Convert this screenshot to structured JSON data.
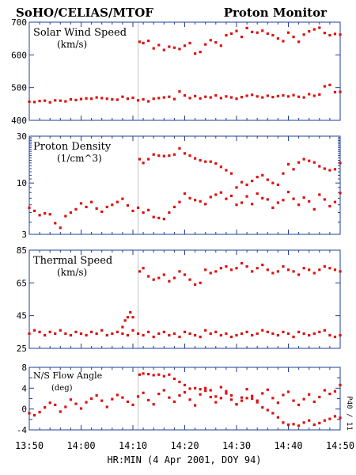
{
  "header": {
    "title_left": "SoHO/CELIAS/MTOF",
    "title_right": "Proton Monitor"
  },
  "side_label": "P40 / 11",
  "colors": {
    "points": "#dd1111",
    "axis": "#1f3f9a",
    "event_line": "#c8c8c8",
    "text": "#000000"
  },
  "chart_data": [
    {
      "type": "scatter",
      "panel_label": "Solar Wind Speed",
      "panel_unit": "(km/s)",
      "yscale": "linear",
      "ylim": [
        400,
        700
      ],
      "y_ticks": [
        400,
        500,
        600,
        700
      ],
      "y_tick_labels": [
        "400",
        "500",
        "600",
        "700"
      ],
      "event_time_min": 21,
      "x": [
        0,
        1,
        2,
        3,
        4,
        5,
        6,
        7,
        8,
        9,
        10,
        11,
        12,
        13,
        14,
        15,
        16,
        17,
        18,
        19,
        20,
        21,
        22,
        23,
        24,
        25,
        26,
        27,
        28,
        29,
        30,
        31,
        32,
        33,
        34,
        35,
        36,
        37,
        38,
        39,
        40,
        41,
        42,
        43,
        44,
        45,
        46,
        47,
        48,
        49,
        50,
        51,
        52,
        53,
        54,
        55,
        56,
        57,
        58,
        59,
        60
      ],
      "y": [
        457,
        456,
        459,
        460,
        455,
        461,
        460,
        458,
        464,
        462,
        465,
        467,
        466,
        470,
        468,
        466,
        464,
        463,
        472,
        466,
        469,
        461,
        464,
        458,
        466,
        468,
        470,
        472,
        465,
        488,
        476,
        468,
        474,
        467,
        472,
        470,
        476,
        468,
        473,
        470,
        466,
        471,
        475,
        478,
        473,
        470,
        475,
        471,
        474,
        476,
        473,
        477,
        472,
        470,
        480,
        475,
        479,
        504,
        508,
        486,
        487
      ]
    },
    {
      "type": "scatter",
      "panel_label": "Proton Density",
      "panel_unit": "(1/cm^3)",
      "yscale": "log",
      "ylim": [
        3,
        30
      ],
      "y_ticks": [
        3,
        10,
        30
      ],
      "y_tick_labels": [
        "3",
        "10",
        "30"
      ],
      "event_time_min": 21,
      "x": [
        0,
        1,
        2,
        3,
        4,
        5,
        6,
        7,
        8,
        9,
        10,
        11,
        12,
        13,
        14,
        15,
        16,
        17,
        18,
        19,
        20,
        21,
        22,
        23,
        24,
        25,
        26,
        27,
        28,
        29,
        30,
        31,
        32,
        33,
        34,
        35,
        36,
        37,
        38,
        39,
        40,
        41,
        42,
        43,
        44,
        45,
        46,
        47,
        48,
        49,
        50,
        51,
        52,
        53,
        54,
        55,
        56,
        57,
        58,
        59,
        60
      ],
      "y": [
        5.6,
        5.2,
        4.7,
        4.9,
        4.8,
        3.9,
        3.5,
        4.6,
        5.0,
        5.4,
        6.2,
        5.7,
        6.4,
        5.5,
        5.1,
        5.7,
        6.0,
        6.4,
        6.9,
        5.9,
        5.2,
        5.6,
        5.0,
        5.3,
        4.5,
        4.4,
        4.3,
        5.0,
        5.7,
        6.4,
        7.8,
        7.0,
        6.7,
        6.5,
        6.1,
        7.2,
        7.6,
        8.0,
        6.9,
        7.4,
        6.0,
        6.3,
        7.3,
        6.1,
        7.8,
        7.0,
        6.8,
        5.6,
        6.3,
        6.7,
        8.1,
        6.9,
        6.0,
        7.1,
        6.5,
        5.4,
        7.6,
        6.8,
        5.8,
        6.4,
        7.9
      ]
    },
    {
      "type": "scatter",
      "panel_label": "Thermal Speed",
      "panel_unit": "(km/s)",
      "yscale": "linear",
      "ylim": [
        25,
        85
      ],
      "y_ticks": [
        25,
        45,
        65,
        85
      ],
      "y_tick_labels": [
        "25",
        "45",
        "65",
        "85"
      ],
      "event_time_min": 21,
      "x": [
        0,
        1,
        2,
        3,
        4,
        5,
        6,
        7,
        8,
        9,
        10,
        11,
        12,
        13,
        14,
        15,
        16,
        17,
        18,
        19,
        20,
        21,
        22,
        23,
        24,
        25,
        26,
        27,
        28,
        29,
        30,
        31,
        32,
        33,
        34,
        35,
        36,
        37,
        38,
        39,
        40,
        41,
        42,
        43,
        44,
        45,
        46,
        47,
        48,
        49,
        50,
        51,
        52,
        53,
        54,
        55,
        56,
        57,
        58,
        59,
        60
      ],
      "y": [
        34,
        36,
        35,
        33,
        35,
        34,
        36,
        34,
        33,
        35,
        34,
        33,
        35,
        34,
        36,
        33,
        34,
        35,
        34,
        33,
        36,
        34,
        33,
        35,
        32,
        34,
        35,
        33,
        34,
        32,
        35,
        34,
        33,
        32,
        36,
        34,
        35,
        33,
        34,
        32,
        33,
        34,
        35,
        33,
        34,
        36,
        35,
        34,
        33,
        35,
        34,
        32,
        35,
        34,
        33,
        34,
        35,
        36,
        33,
        32,
        33
      ]
    },
    {
      "type": "scatter",
      "panel_label": "N/S Flow Angle",
      "panel_unit": "(deg)",
      "yscale": "linear",
      "ylim": [
        -4,
        8
      ],
      "y_ticks": [
        -4,
        0,
        4,
        8
      ],
      "y_tick_labels": [
        "-4",
        "0",
        "4",
        "8"
      ],
      "y_minor_ticks": [
        -2,
        2,
        6
      ],
      "event_time_min": 21,
      "x": [
        0,
        1,
        2,
        3,
        4,
        5,
        6,
        7,
        8,
        9,
        10,
        11,
        12,
        13,
        14,
        15,
        16,
        17,
        18,
        19,
        20,
        21,
        22,
        23,
        24,
        25,
        26,
        27,
        28,
        29,
        30,
        31,
        32,
        33,
        34,
        35,
        36,
        37,
        38,
        39,
        40,
        41,
        42,
        43,
        44,
        45,
        46,
        47,
        48,
        49,
        50,
        51,
        52,
        53,
        54,
        55,
        56,
        57,
        58,
        59,
        60
      ],
      "y": [
        -0.8,
        -1.2,
        -0.6,
        0.3,
        1.2,
        0.8,
        -0.5,
        0.4,
        1.8,
        1.0,
        0.1,
        1.3,
        2.0,
        2.6,
        1.6,
        0.4,
        1.9,
        2.7,
        2.2,
        1.4,
        0.8,
        2.4,
        3.1,
        1.7,
        0.9,
        2.9,
        3.6,
        2.2,
        1.4,
        2.6,
        3.2,
        1.8,
        0.7,
        2.8,
        3.5,
        2.3,
        1.3,
        2.1,
        3.4,
        2.6,
        0.9,
        2.2,
        3.8,
        2.5,
        1.6,
        3.0,
        3.7,
        2.1,
        1.2,
        2.7,
        3.3,
        1.6,
        0.8,
        1.9,
        2.8,
        1.4,
        2.3,
        3.6,
        2.9,
        3.4,
        4.6
      ]
    }
  ],
  "extra_series": {
    "solar_wind_speed_after": {
      "x": [
        21.3,
        22,
        23,
        24,
        25,
        26,
        27,
        28,
        29,
        30,
        31,
        32,
        33,
        34,
        35,
        36,
        37,
        38,
        39,
        40,
        41,
        42,
        43,
        44,
        45,
        46,
        47,
        48,
        49,
        50,
        51,
        52,
        53,
        54,
        55,
        56,
        57,
        58,
        59,
        60
      ],
      "y": [
        640,
        636,
        643,
        620,
        630,
        615,
        625,
        622,
        618,
        628,
        636,
        604,
        609,
        632,
        645,
        638,
        628,
        660,
        665,
        673,
        655,
        682,
        670,
        668,
        674,
        665,
        660,
        650,
        642,
        668,
        655,
        640,
        662,
        672,
        678,
        683,
        667,
        660,
        664,
        662
      ]
    },
    "proton_density_after": {
      "x": [
        21.3,
        22,
        23,
        24,
        25,
        26,
        27,
        28,
        29,
        30,
        31,
        32,
        33,
        34,
        35,
        36,
        37,
        38,
        39,
        40,
        41,
        42,
        43,
        44,
        45,
        46,
        47,
        48,
        49,
        50,
        51,
        52,
        53,
        54,
        55,
        56,
        57,
        58,
        59,
        60
      ],
      "y": [
        17.5,
        16.0,
        17.5,
        19.5,
        19.0,
        18.8,
        19.0,
        19.5,
        22.5,
        20.0,
        19.0,
        17.8,
        17.0,
        16.5,
        16.5,
        15.8,
        14.6,
        13.5,
        12.5,
        9.0,
        10.2,
        9.6,
        10.5,
        11.5,
        12.0,
        10.8,
        10.0,
        9.6,
        12.5,
        15.5,
        13.8,
        16.2,
        17.5,
        16.8,
        16.2,
        14.8,
        14.0,
        13.5,
        13.8,
        16.0
      ]
    },
    "thermal_speed_after": {
      "x": [
        21.3,
        22,
        23,
        24,
        25,
        26,
        27,
        28,
        29,
        30,
        31,
        32,
        33,
        34,
        35,
        36,
        37,
        38,
        39,
        40,
        41,
        42,
        43,
        44,
        45,
        46,
        47,
        48,
        49,
        50,
        51,
        52,
        53,
        54,
        55,
        56,
        57,
        58,
        59,
        60
      ],
      "y": [
        72,
        74,
        69,
        67,
        68,
        70,
        66,
        68,
        72,
        70,
        67,
        64,
        65,
        73,
        71,
        72,
        74,
        75,
        73,
        74,
        77,
        75,
        72,
        74,
        76,
        73,
        71,
        72,
        75,
        73,
        72,
        70,
        74,
        73,
        71,
        73,
        75,
        74,
        73,
        72
      ]
    },
    "ns_flow_angle_after": {
      "x": [
        21.3,
        22,
        23,
        24,
        25,
        26,
        27,
        28,
        29,
        30,
        31,
        32,
        33,
        34,
        35,
        36,
        37,
        38,
        39,
        40,
        41,
        42,
        43,
        44,
        45,
        46,
        47,
        48,
        49,
        50,
        51,
        52,
        53,
        54,
        55,
        56,
        57,
        58,
        59,
        60
      ],
      "y": [
        6.6,
        6.8,
        6.7,
        6.5,
        6.6,
        6.3,
        6.6,
        5.8,
        5.2,
        4.6,
        3.9,
        4.0,
        3.8,
        4.0,
        3.6,
        2.4,
        4.2,
        3.0,
        1.8,
        0.9,
        1.6,
        2.1,
        2.0,
        1.3,
        0.3,
        -0.2,
        -0.8,
        -1.6,
        -2.6,
        -3.0,
        -2.9,
        -3.2,
        -2.6,
        -2.2,
        -3.0,
        -2.7,
        -2.2,
        -1.9,
        -1.4,
        -1.7
      ]
    },
    "thermal_speed_ramp": {
      "x": [
        18,
        18.5,
        19,
        19.5,
        20
      ],
      "y": [
        38,
        42,
        44,
        47,
        44
      ]
    }
  },
  "x_axis": {
    "tick_labels": [
      "13:50",
      "14:00",
      "14:10",
      "14:20",
      "14:30",
      "14:40",
      "14:50"
    ],
    "tick_values": [
      0,
      10,
      20,
      30,
      40,
      50,
      60
    ],
    "xlim": [
      0,
      60
    ],
    "xlabel": "HR:MIN (4 Apr 2001, DOY 94)"
  }
}
